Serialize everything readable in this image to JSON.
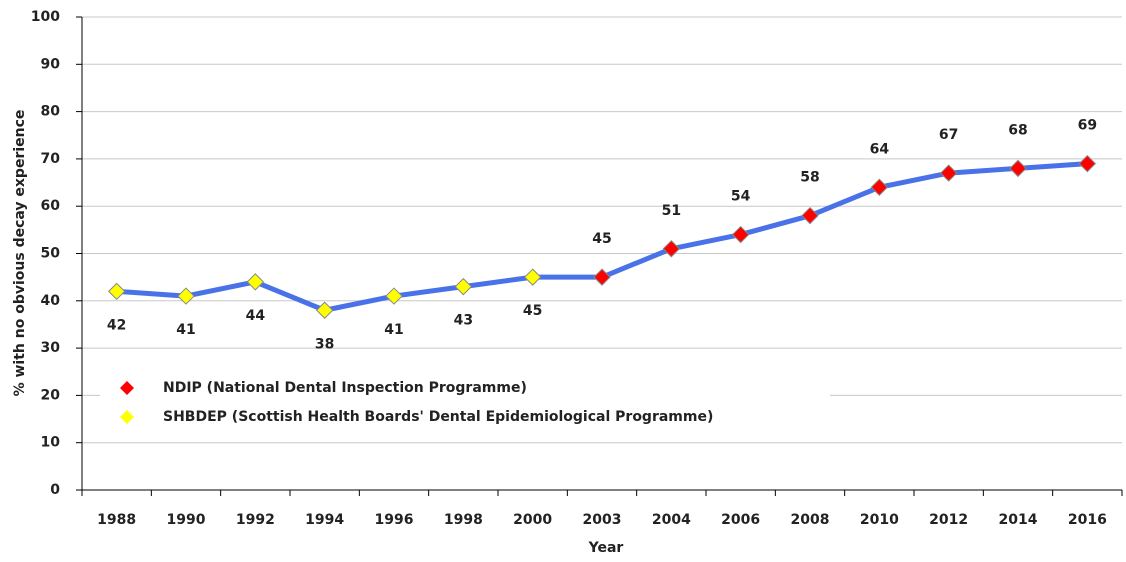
{
  "chart_data": {
    "type": "line",
    "x_label": "Year",
    "y_label": "% with no obvious decay experience",
    "categories": [
      "1988",
      "1990",
      "1992",
      "1994",
      "1996",
      "1998",
      "2000",
      "2003",
      "2004",
      "2006",
      "2008",
      "2010",
      "2012",
      "2014",
      "2016"
    ],
    "series": [
      {
        "name": "NDIP (National Dental Inspection Programme)",
        "color": "#ff0000",
        "label_position": "above",
        "values": [
          null,
          null,
          null,
          null,
          null,
          null,
          null,
          45,
          51,
          54,
          58,
          64,
          67,
          68,
          69
        ]
      },
      {
        "name": "SHBDEP (Scottish Health Boards' Dental Epidemiological Programme)",
        "color": "#ffff00",
        "label_position": "below",
        "values": [
          42,
          41,
          44,
          38,
          41,
          43,
          45,
          null,
          null,
          null,
          null,
          null,
          null,
          null,
          null
        ]
      }
    ],
    "line_color": "#4a72e8",
    "ylim": [
      0,
      100
    ],
    "yticks": [
      0,
      10,
      20,
      30,
      40,
      50,
      60,
      70,
      80,
      90,
      100
    ],
    "grid": true
  }
}
